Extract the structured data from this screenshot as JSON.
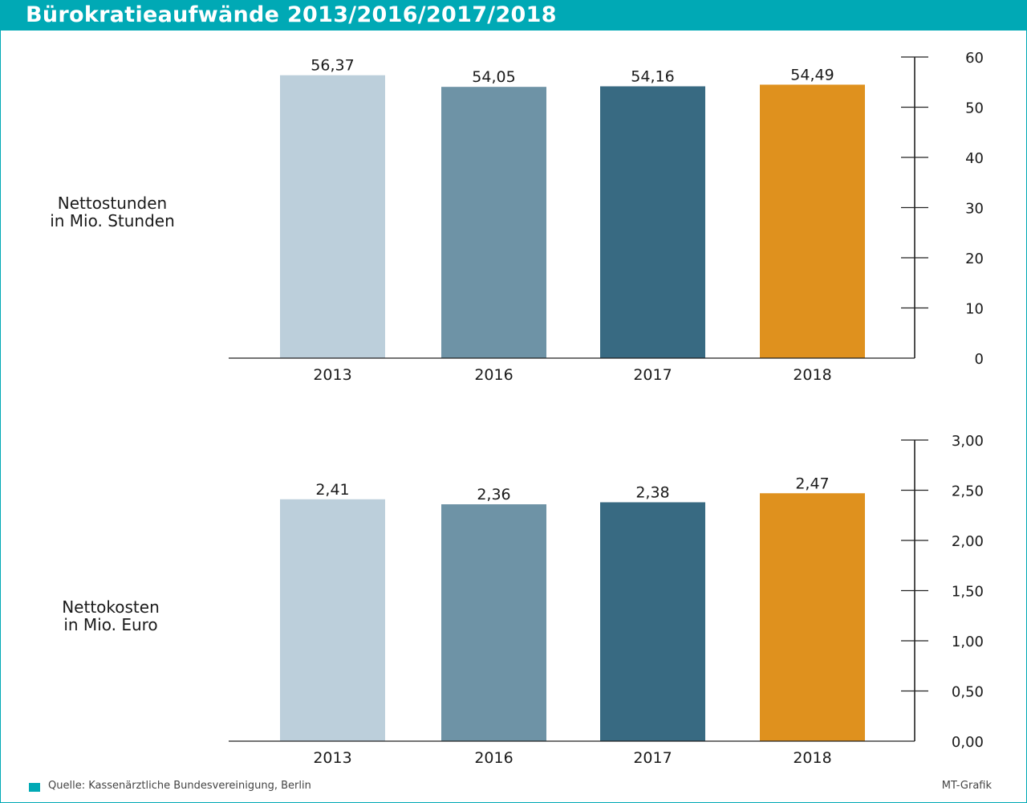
{
  "header": {
    "title": "Bürokratieaufwände 2013/2016/2017/2018"
  },
  "colors": {
    "accent": "#00a9b5",
    "bars": [
      "#bccfdb",
      "#6e93a6",
      "#386a82",
      "#df911e"
    ],
    "axis": "#222222"
  },
  "chart_data": [
    {
      "type": "bar",
      "title": "",
      "ylabel_lines": [
        "Nettostunden",
        "in Mio. Stunden"
      ],
      "categories": [
        "2013",
        "2016",
        "2017",
        "2018"
      ],
      "values": [
        56.37,
        54.05,
        54.16,
        54.49
      ],
      "value_labels": [
        "56,37",
        "54,05",
        "54,16",
        "54,49"
      ],
      "ylim": [
        0,
        60
      ],
      "yticks": [
        0,
        10,
        20,
        30,
        40,
        50,
        60
      ],
      "ytick_labels": [
        "0",
        "10",
        "20",
        "30",
        "40",
        "50",
        "60"
      ],
      "y_axis_side": "right",
      "grid": false,
      "legend": "none"
    },
    {
      "type": "bar",
      "title": "",
      "ylabel_lines": [
        "Nettokosten",
        "in Mio. Euro"
      ],
      "categories": [
        "2013",
        "2016",
        "2017",
        "2018"
      ],
      "values": [
        2.41,
        2.36,
        2.38,
        2.47
      ],
      "value_labels": [
        "2,41",
        "2,36",
        "2,38",
        "2,47"
      ],
      "ylim": [
        0,
        3
      ],
      "yticks": [
        0,
        0.5,
        1,
        1.5,
        2,
        2.5,
        3
      ],
      "ytick_labels": [
        "0,00",
        "0,50",
        "1,00",
        "1,50",
        "2,00",
        "2,50",
        "3,00"
      ],
      "y_axis_side": "right",
      "grid": false,
      "legend": "none"
    }
  ],
  "footer": {
    "source": "Quelle: Kassenärztliche Bundesvereinigung, Berlin",
    "credit": "MT-Grafik"
  }
}
